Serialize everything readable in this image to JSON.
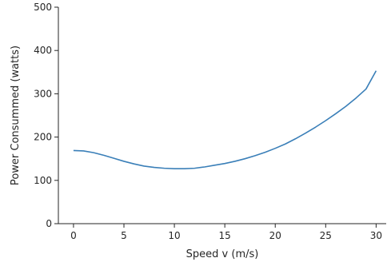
{
  "chart_data": {
    "type": "line",
    "title": "",
    "xlabel": "Speed v (m/s)",
    "ylabel": "Power Consummed (watts)",
    "xlim": [
      -1.5,
      31
    ],
    "ylim": [
      0,
      500
    ],
    "x_ticks": [
      0,
      5,
      10,
      15,
      20,
      25,
      30
    ],
    "y_ticks": [
      0,
      100,
      200,
      300,
      400,
      500
    ],
    "grid": false,
    "legend": "none",
    "colors": {
      "line": "#3a7fb8",
      "axis": "#262626"
    },
    "series": [
      {
        "x": [
          0,
          1,
          2,
          3,
          4,
          5,
          6,
          7,
          8,
          9,
          10,
          11,
          12,
          13,
          14,
          15,
          16,
          17,
          18,
          19,
          20,
          21,
          22,
          23,
          24,
          25,
          26,
          27,
          28,
          29,
          30
        ],
        "y": [
          169,
          168,
          164,
          158,
          151,
          144,
          138,
          133,
          130,
          128,
          127,
          127,
          128,
          131,
          135,
          139,
          144,
          150,
          157,
          165,
          174,
          184,
          196,
          209,
          223,
          238,
          254,
          271,
          290,
          311,
          353
        ]
      }
    ]
  }
}
